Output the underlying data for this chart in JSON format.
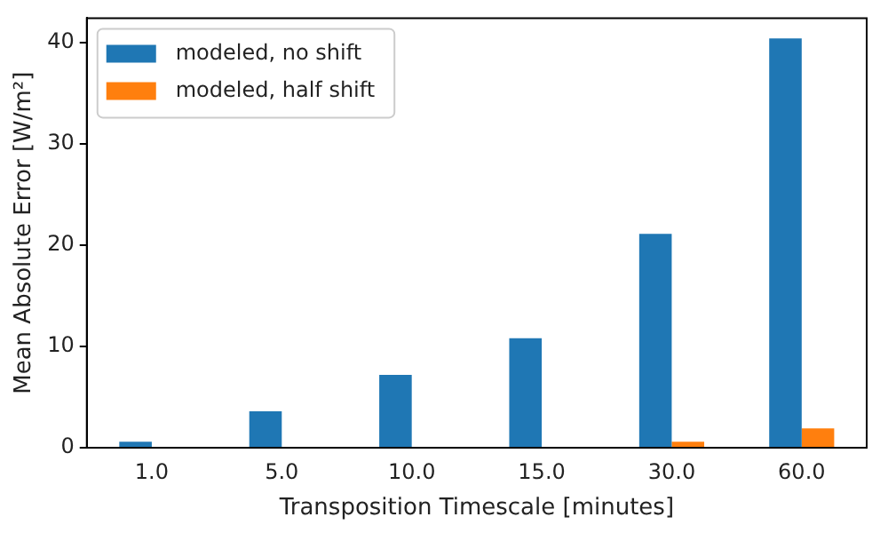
{
  "chart_data": {
    "type": "bar",
    "xlabel": "Transposition Timescale [minutes]",
    "ylabel": "Mean Absolute Error [W/m²]",
    "categories": [
      "1.0",
      "5.0",
      "10.0",
      "15.0",
      "30.0",
      "60.0"
    ],
    "series": [
      {
        "name": "modeled, no shift",
        "color": "#1f77b4",
        "values": [
          0.6,
          3.6,
          7.2,
          10.8,
          21.1,
          40.4
        ]
      },
      {
        "name": "modeled, half shift",
        "color": "#ff7f0e",
        "values": [
          0,
          0,
          0,
          0,
          0.6,
          1.9
        ]
      }
    ],
    "ylim": [
      0,
      42.4
    ],
    "yticks": [
      0,
      10,
      20,
      30,
      40
    ],
    "grid": false,
    "legend": "top left"
  }
}
